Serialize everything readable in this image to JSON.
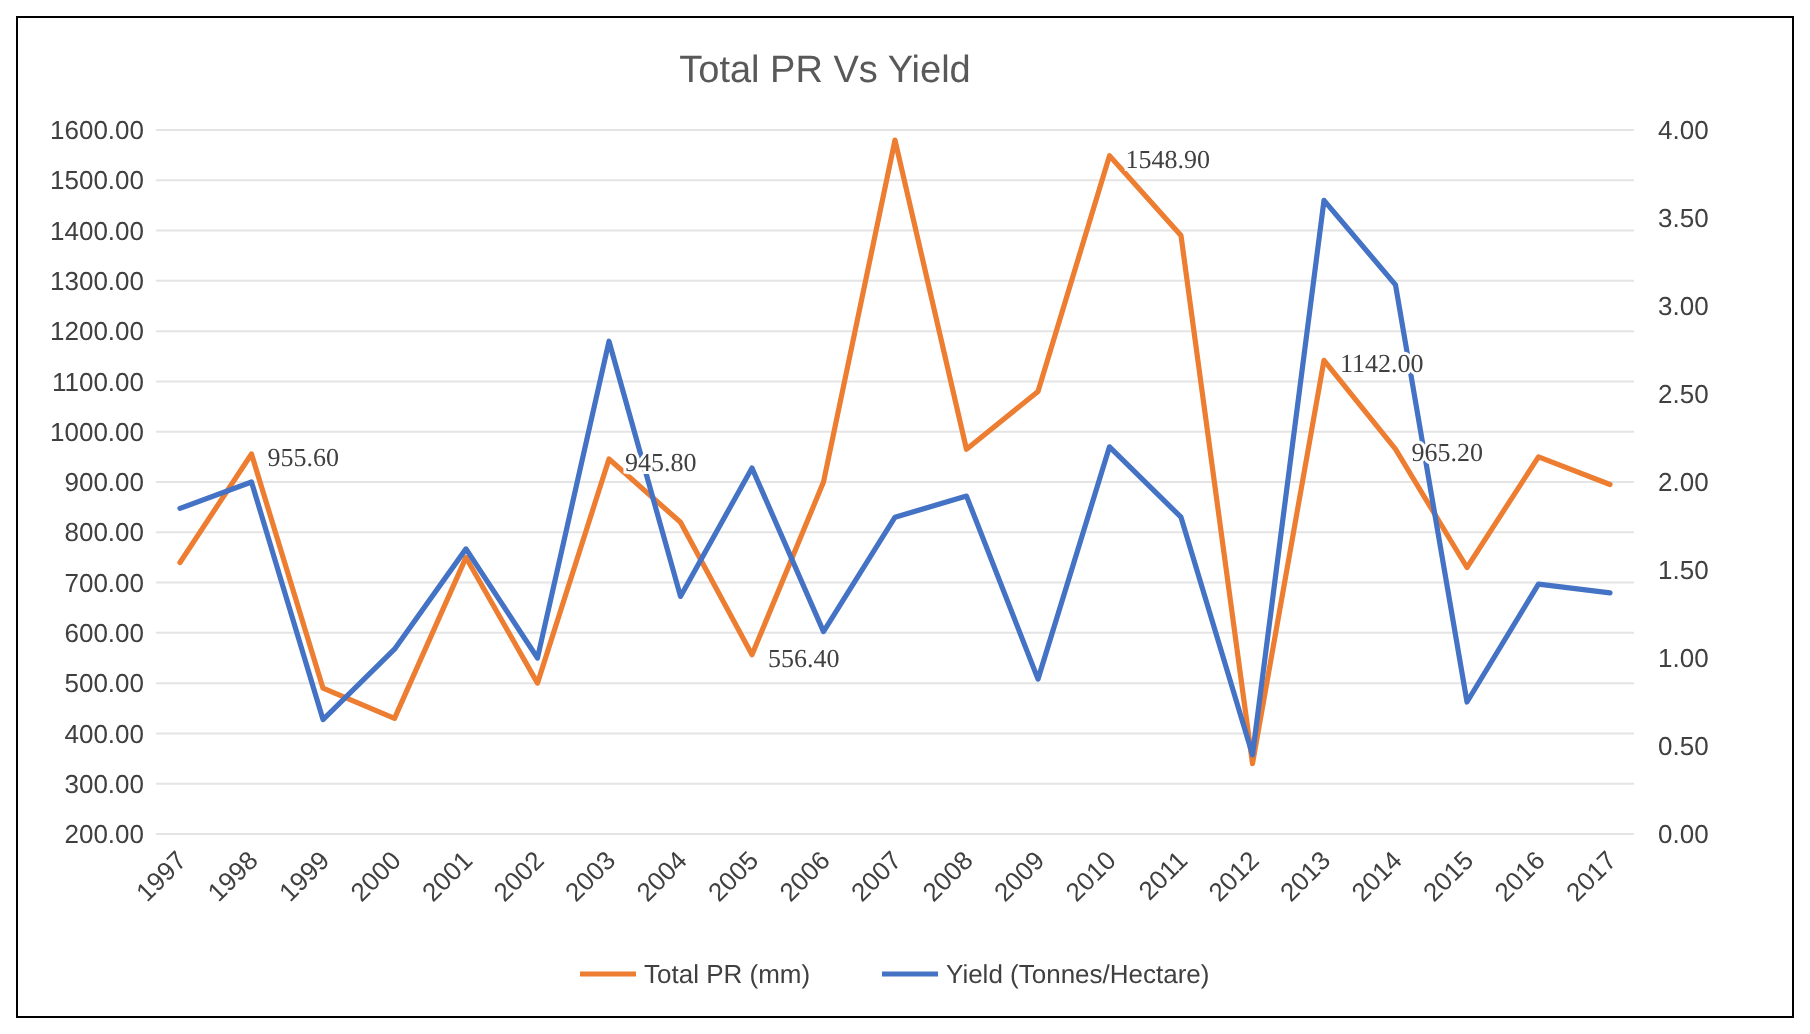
{
  "chart_data": {
    "type": "line",
    "title": "Total PR Vs Yield",
    "categories": [
      "1997",
      "1998",
      "1999",
      "2000",
      "2001",
      "2002",
      "2003",
      "2004",
      "2005",
      "2006",
      "2007",
      "2008",
      "2009",
      "2010",
      "2011",
      "2012",
      "2013",
      "2014",
      "2015",
      "2016",
      "2017"
    ],
    "series": [
      {
        "name": "Total PR (mm)",
        "color": "#ed7d31",
        "values": [
          740,
          955.6,
          490,
          430,
          750,
          500,
          945.8,
          820,
          556.4,
          900,
          1580,
          965,
          1080,
          1548.9,
          1390,
          340,
          1142,
          965.2,
          730,
          950,
          895
        ],
        "value_labels": [
          null,
          "955.60",
          null,
          null,
          null,
          null,
          "945.80",
          null,
          "556.40",
          null,
          null,
          null,
          null,
          "1548.90",
          null,
          null,
          "1142.00",
          "965.20",
          null,
          null,
          null
        ]
      },
      {
        "name": "Yield (Tonnes/Hectare)",
        "color": "#4472c4",
        "axis": "y2",
        "values": [
          1.85,
          2.0,
          0.65,
          1.05,
          1.62,
          1.0,
          2.8,
          1.35,
          2.08,
          1.15,
          1.8,
          1.92,
          0.88,
          2.2,
          1.8,
          0.45,
          3.6,
          3.12,
          0.75,
          1.42,
          1.37
        ]
      }
    ],
    "ylim": [
      200,
      1600
    ],
    "yticks": [
      {
        "value": 200,
        "label": "200.00"
      },
      {
        "value": 300,
        "label": "300.00"
      },
      {
        "value": 400,
        "label": "400.00"
      },
      {
        "value": 500,
        "label": "500.00"
      },
      {
        "value": 600,
        "label": "600.00"
      },
      {
        "value": 700,
        "label": "700.00"
      },
      {
        "value": 800,
        "label": "800.00"
      },
      {
        "value": 900,
        "label": "900.00"
      },
      {
        "value": 1000,
        "label": "1000.00"
      },
      {
        "value": 1100,
        "label": "1100.00"
      },
      {
        "value": 1200,
        "label": "1200.00"
      },
      {
        "value": 1300,
        "label": "1300.00"
      },
      {
        "value": 1400,
        "label": "1400.00"
      },
      {
        "value": 1500,
        "label": "1500.00"
      },
      {
        "value": 1600,
        "label": "1600.00"
      }
    ],
    "y2lim": [
      0,
      4
    ],
    "y2ticks": [
      {
        "value": 0,
        "label": "0.00"
      },
      {
        "value": 0.5,
        "label": "0.50"
      },
      {
        "value": 1,
        "label": "1.00"
      },
      {
        "value": 1.5,
        "label": "1.50"
      },
      {
        "value": 2,
        "label": "2.00"
      },
      {
        "value": 2.5,
        "label": "2.50"
      },
      {
        "value": 3,
        "label": "3.00"
      },
      {
        "value": 3.5,
        "label": "3.50"
      },
      {
        "value": 4,
        "label": "4.00"
      }
    ],
    "grid": "y",
    "legend": "bottom",
    "marker": "none",
    "line_style": "solid"
  }
}
